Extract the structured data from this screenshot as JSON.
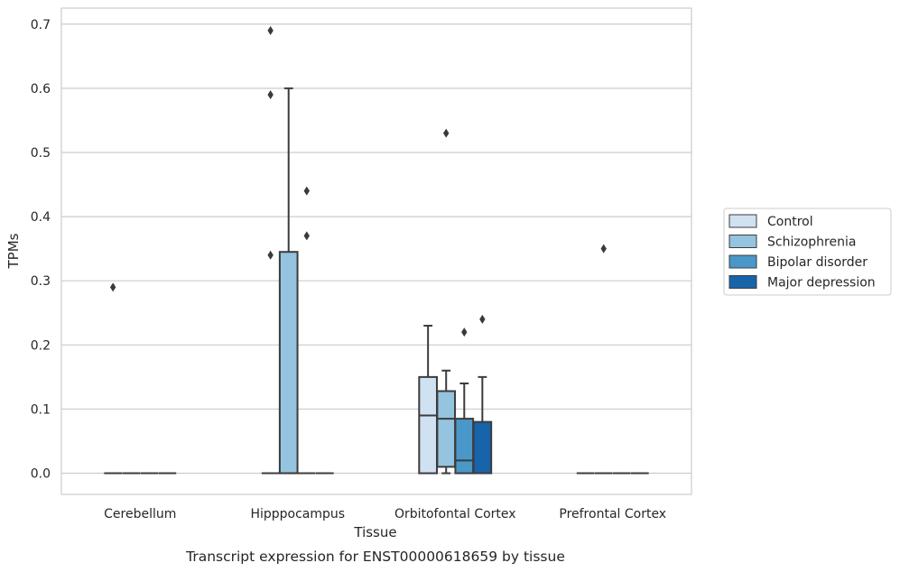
{
  "chart_data": {
    "type": "box",
    "title": "",
    "caption": "Transcript expression for ENST00000618659 by tissue",
    "xlabel": "Tissue",
    "ylabel": "TPMs",
    "ylim": [
      -0.033,
      0.725
    ],
    "yticks": [
      "0.0",
      "0.1",
      "0.2",
      "0.3",
      "0.4",
      "0.5",
      "0.6",
      "0.7"
    ],
    "grid": "horizontal",
    "legend_position": "right",
    "categories": [
      "Cerebellum",
      "Hipppocampus",
      "Orbitofontal Cortex",
      "Prefrontal Cortex"
    ],
    "series": [
      {
        "name": "Control",
        "color": "#d0e1f2",
        "boxes": [
          {
            "whislo": 0,
            "q1": 0,
            "med": 0,
            "q3": 0,
            "whishi": 0,
            "fliers": [
              0.29
            ]
          },
          {
            "whislo": 0,
            "q1": 0,
            "med": 0,
            "q3": 0,
            "whishi": 0,
            "fliers": [
              0.69,
              0.59,
              0.34
            ]
          },
          {
            "whislo": 0,
            "q1": 0,
            "med": 0.09,
            "q3": 0.15,
            "whishi": 0.23,
            "fliers": []
          },
          {
            "whislo": 0,
            "q1": 0,
            "med": 0,
            "q3": 0,
            "whishi": 0,
            "fliers": []
          }
        ]
      },
      {
        "name": "Schizophrenia",
        "color": "#94c4df",
        "boxes": [
          {
            "whislo": 0,
            "q1": 0,
            "med": 0,
            "q3": 0,
            "whishi": 0,
            "fliers": []
          },
          {
            "whislo": 0,
            "q1": 0,
            "med": 0,
            "q3": 0.345,
            "whishi": 0.6,
            "fliers": []
          },
          {
            "whislo": 0,
            "q1": 0.01,
            "med": 0.085,
            "q3": 0.128,
            "whishi": 0.16,
            "fliers": [
              0.53
            ]
          },
          {
            "whislo": 0,
            "q1": 0,
            "med": 0,
            "q3": 0,
            "whishi": 0,
            "fliers": [
              0.35
            ]
          }
        ]
      },
      {
        "name": "Bipolar disorder",
        "color": "#4a98c9",
        "boxes": [
          {
            "whislo": 0,
            "q1": 0,
            "med": 0,
            "q3": 0,
            "whishi": 0,
            "fliers": []
          },
          {
            "whislo": 0,
            "q1": 0,
            "med": 0,
            "q3": 0,
            "whishi": 0,
            "fliers": [
              0.44,
              0.37
            ]
          },
          {
            "whislo": 0,
            "q1": 0,
            "med": 0.02,
            "q3": 0.085,
            "whishi": 0.14,
            "fliers": [
              0.22
            ]
          },
          {
            "whislo": 0,
            "q1": 0,
            "med": 0,
            "q3": 0,
            "whishi": 0,
            "fliers": []
          }
        ]
      },
      {
        "name": "Major depression",
        "color": "#1764ab",
        "boxes": [
          {
            "whislo": 0,
            "q1": 0,
            "med": 0,
            "q3": 0,
            "whishi": 0,
            "fliers": []
          },
          {
            "whislo": 0,
            "q1": 0,
            "med": 0,
            "q3": 0,
            "whishi": 0,
            "fliers": []
          },
          {
            "whislo": 0,
            "q1": 0,
            "med": 0,
            "q3": 0.08,
            "whishi": 0.15,
            "fliers": [
              0.24
            ]
          },
          {
            "whislo": 0,
            "q1": 0,
            "med": 0,
            "q3": 0,
            "whishi": 0,
            "fliers": []
          }
        ]
      }
    ]
  }
}
